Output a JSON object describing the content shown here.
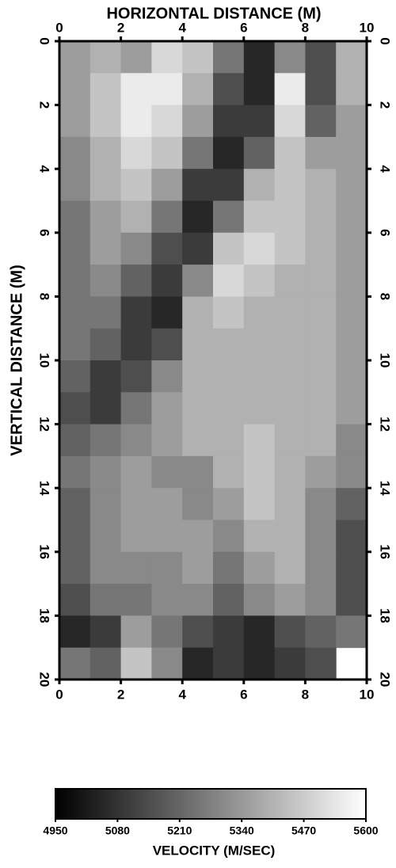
{
  "chart_data": {
    "type": "heatmap",
    "title": "HORIZONTAL DISTANCE (M)",
    "y_label": "VERTICAL DISTANCE (M)",
    "xlim": [
      0,
      10
    ],
    "ylim": [
      0,
      20
    ],
    "y_inverted": true,
    "xticks": [
      0,
      2,
      4,
      6,
      8,
      10
    ],
    "yticks": [
      0,
      2,
      4,
      6,
      8,
      10,
      12,
      14,
      16,
      18,
      20
    ],
    "colors": [
      "#000000",
      "#ffffff"
    ],
    "values": [
      [
        5350,
        5400,
        5350,
        5500,
        5450,
        5250,
        5050,
        5300,
        5150,
        5400
      ],
      [
        5350,
        5450,
        5550,
        5550,
        5400,
        5150,
        5050,
        5550,
        5150,
        5400
      ],
      [
        5350,
        5450,
        5550,
        5500,
        5350,
        5100,
        5100,
        5500,
        5200,
        5350
      ],
      [
        5300,
        5400,
        5500,
        5450,
        5250,
        5050,
        5200,
        5450,
        5350,
        5350
      ],
      [
        5300,
        5400,
        5450,
        5350,
        5100,
        5100,
        5400,
        5450,
        5400,
        5350
      ],
      [
        5250,
        5350,
        5400,
        5250,
        5050,
        5250,
        5450,
        5450,
        5400,
        5350
      ],
      [
        5250,
        5350,
        5300,
        5150,
        5100,
        5450,
        5500,
        5450,
        5400,
        5350
      ],
      [
        5250,
        5300,
        5200,
        5100,
        5300,
        5500,
        5450,
        5400,
        5400,
        5350
      ],
      [
        5250,
        5250,
        5100,
        5050,
        5400,
        5450,
        5400,
        5400,
        5400,
        5350
      ],
      [
        5250,
        5200,
        5100,
        5150,
        5400,
        5400,
        5400,
        5400,
        5400,
        5350
      ],
      [
        5200,
        5100,
        5150,
        5300,
        5400,
        5400,
        5400,
        5400,
        5400,
        5350
      ],
      [
        5150,
        5100,
        5250,
        5350,
        5400,
        5400,
        5400,
        5400,
        5400,
        5350
      ],
      [
        5200,
        5250,
        5300,
        5350,
        5400,
        5400,
        5450,
        5400,
        5400,
        5300
      ],
      [
        5250,
        5300,
        5350,
        5300,
        5300,
        5400,
        5450,
        5400,
        5350,
        5300
      ],
      [
        5200,
        5300,
        5350,
        5350,
        5300,
        5350,
        5450,
        5400,
        5300,
        5200
      ],
      [
        5200,
        5300,
        5350,
        5350,
        5350,
        5300,
        5400,
        5400,
        5300,
        5150
      ],
      [
        5200,
        5300,
        5300,
        5300,
        5350,
        5250,
        5350,
        5400,
        5300,
        5150
      ],
      [
        5150,
        5250,
        5250,
        5300,
        5300,
        5200,
        5300,
        5350,
        5300,
        5150
      ],
      [
        5050,
        5100,
        5350,
        5250,
        5150,
        5100,
        5050,
        5150,
        5200,
        5250
      ],
      [
        5250,
        5200,
        5450,
        5300,
        5050,
        5100,
        5050,
        5100,
        5150,
        null
      ]
    ],
    "colorbar": {
      "label": "VELOCITY (M/SEC)",
      "lim": [
        4950,
        5600
      ],
      "ticks": [
        4950,
        5080,
        5210,
        5340,
        5470,
        5600
      ]
    }
  }
}
